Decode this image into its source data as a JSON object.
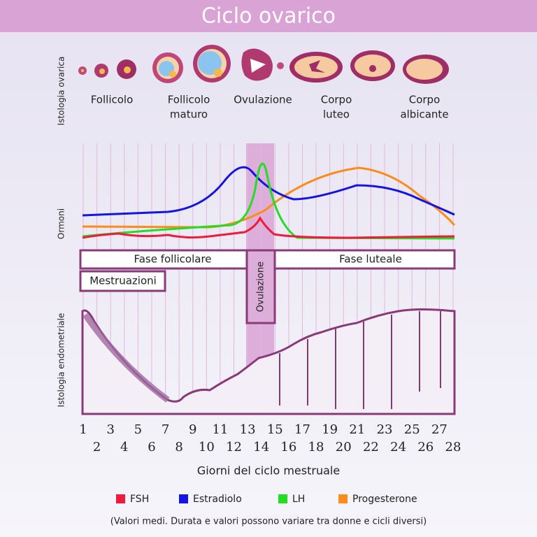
{
  "title": "Ciclo ovarico",
  "ovarian": {
    "label": "Istologia ovarica",
    "stages": [
      [
        "Follicolo"
      ],
      [
        "Follicolo",
        "maturo"
      ],
      [
        "Ovulazione"
      ],
      [
        "Corpo",
        "luteo"
      ],
      [
        "Corpo",
        "albicante"
      ]
    ]
  },
  "hormones": {
    "label": "Ormoni"
  },
  "phases": {
    "follicular": "Fase follicolare",
    "luteal": "Fase luteale",
    "menstruation": "Mestruazioni",
    "ovulation": "Ovulazione"
  },
  "endometrium": {
    "label": "Istologia endometriale"
  },
  "x_axis": {
    "days": [
      1,
      2,
      3,
      4,
      5,
      6,
      7,
      8,
      9,
      10,
      11,
      12,
      13,
      14,
      15,
      16,
      17,
      18,
      19,
      20,
      21,
      22,
      23,
      24,
      25,
      26,
      27,
      28
    ],
    "label": "Giorni del ciclo mestruale"
  },
  "legend": [
    {
      "name": "FSH",
      "color": "#ee1c3a"
    },
    {
      "name": "Estradiolo",
      "color": "#1414e6"
    },
    {
      "name": "LH",
      "color": "#22dd22"
    },
    {
      "name": "Progesterone",
      "color": "#ff8c1a"
    }
  ],
  "note": "(Valori medi. Durata e valori possono variare tra donne e cicli diversi)"
}
